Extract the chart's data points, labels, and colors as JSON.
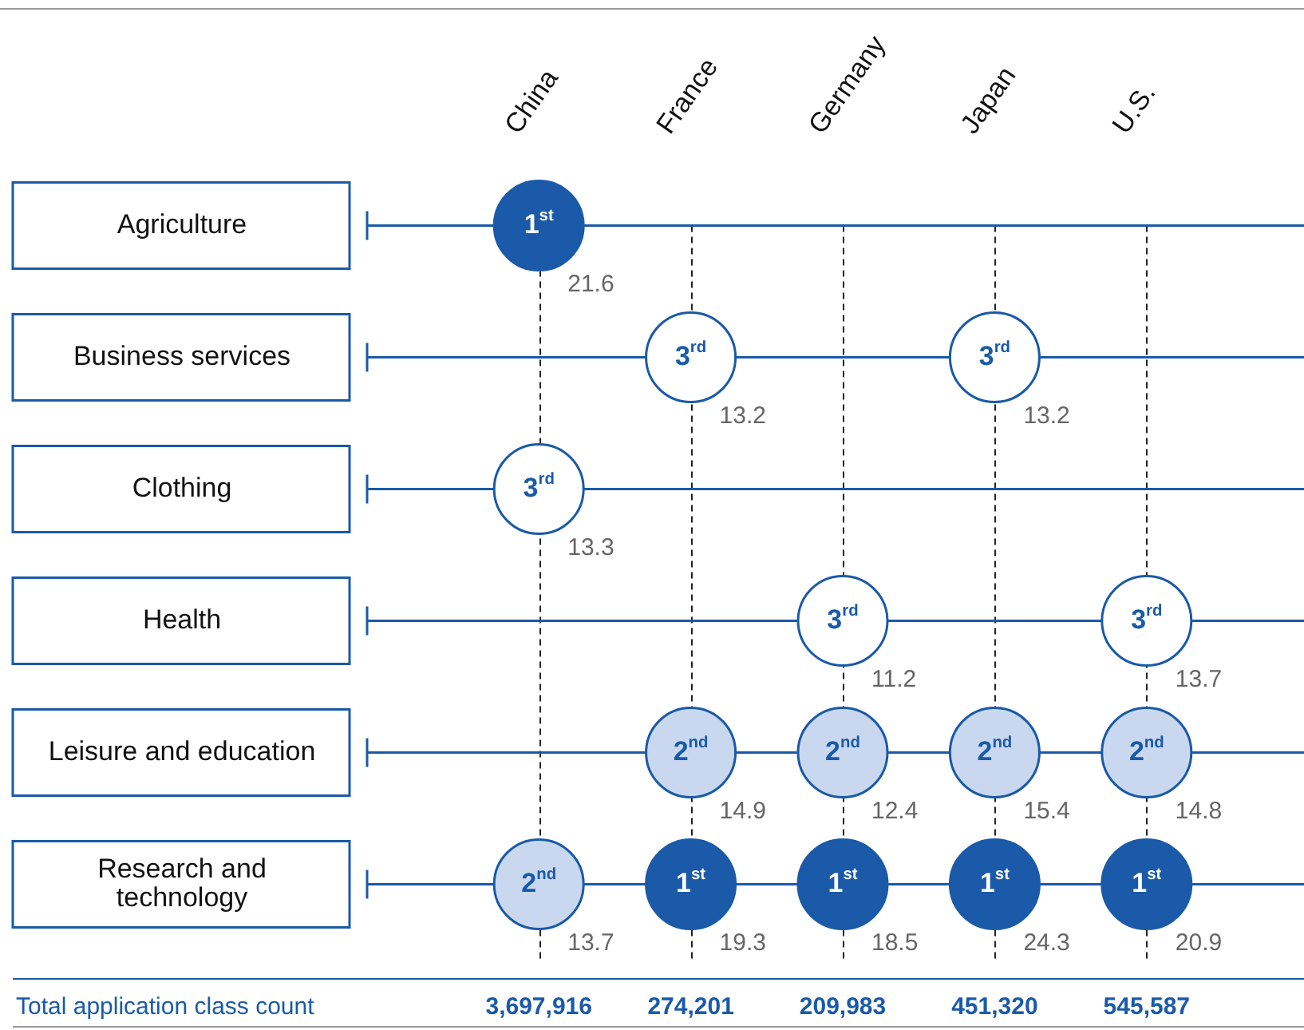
{
  "chart_data": {
    "type": "heatmap",
    "categories": [
      "China",
      "France",
      "Germany",
      "Japan",
      "U.S."
    ],
    "y_categories": [
      "Agriculture",
      "Business services",
      "Clothing",
      "Health",
      "Leisure and education",
      "Research and technology"
    ],
    "cells": [
      [
        21.6,
        null,
        null,
        null,
        null
      ],
      [
        null,
        13.2,
        null,
        13.2,
        null
      ],
      [
        13.3,
        null,
        null,
        null,
        null
      ],
      [
        null,
        null,
        11.2,
        null,
        13.7
      ],
      [
        null,
        14.9,
        12.4,
        15.4,
        14.8
      ],
      [
        13.7,
        19.3,
        18.5,
        24.3,
        20.9
      ]
    ],
    "colors": [
      [
        "#1a5aa8",
        null,
        null,
        null,
        null
      ],
      [
        null,
        "#ffffff",
        null,
        "#ffffff",
        null
      ],
      [
        "#ffffff",
        null,
        null,
        null,
        null
      ],
      [
        null,
        null,
        "#ffffff",
        null,
        "#ffffff"
      ],
      [
        null,
        "#c9d8ee",
        "#c9d8ee",
        "#c9d8ee",
        "#c9d8ee"
      ],
      [
        "#c9d8ee",
        "#1a5aa8",
        "#1a5aa8",
        "#1a5aa8",
        "#1a5aa8"
      ]
    ],
    "grid": true,
    "data_labels": true,
    "totals": [
      "3,697,916",
      "274,201",
      "209,983",
      "451,320",
      "545,587"
    ],
    "annotations": [
      "Total application class count",
      "1$^{st}$",
      "3$^{rd}$",
      "3$^{rd}$",
      "3$^{rd}$",
      "3$^{rd}$",
      "3$^{rd}$",
      "2$^{nd}$",
      "2$^{nd}$",
      "2$^{nd}$",
      "2$^{nd}$",
      "2$^{nd}$",
      "1$^{st}$",
      "1$^{st}$",
      "1$^{st}$",
      "1$^{st}$"
    ]
  }
}
